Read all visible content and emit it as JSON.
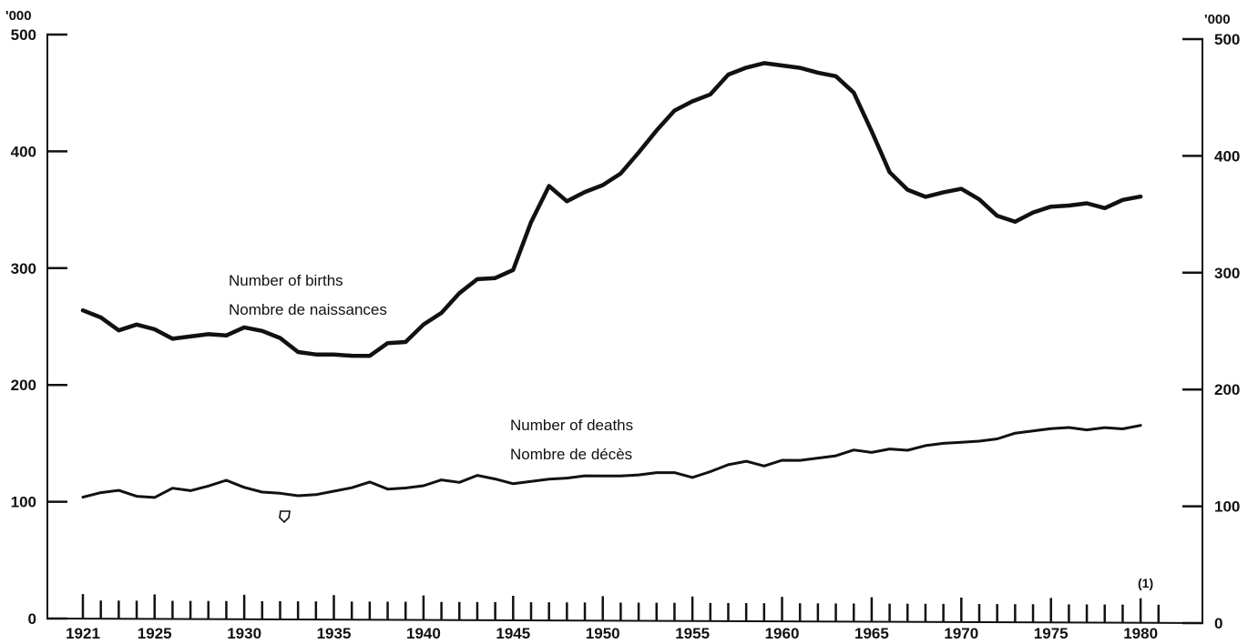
{
  "chart_data": {
    "type": "line",
    "ylabel_left": "'000",
    "ylabel_right": "'000",
    "ylim": [
      0,
      500
    ],
    "y_ticks_left": [
      "0",
      "100",
      "200",
      "300",
      "400",
      "500"
    ],
    "y_ticks_right": [
      "0",
      "100",
      "200",
      "300",
      "400",
      "500"
    ],
    "x_tick_labels": [
      "1921",
      "1925",
      "1930",
      "1935",
      "1940",
      "1945",
      "1950",
      "1955",
      "1960",
      "1965",
      "1970",
      "1975",
      "1980"
    ],
    "footnote_marker": "(1)",
    "x": [
      1921,
      1922,
      1923,
      1924,
      1925,
      1926,
      1927,
      1928,
      1929,
      1930,
      1931,
      1932,
      1933,
      1934,
      1935,
      1936,
      1937,
      1938,
      1939,
      1940,
      1941,
      1942,
      1943,
      1944,
      1945,
      1946,
      1947,
      1948,
      1949,
      1950,
      1951,
      1952,
      1953,
      1954,
      1955,
      1956,
      1957,
      1958,
      1959,
      1960,
      1961,
      1962,
      1963,
      1964,
      1965,
      1966,
      1967,
      1968,
      1969,
      1970,
      1971,
      1972,
      1973,
      1974,
      1975,
      1976,
      1977,
      1978,
      1979,
      1980
    ],
    "series": [
      {
        "name": "Number of births",
        "name_fr": "Nombre de naissances",
        "color": "#111111",
        "values": [
          264,
          258,
          247,
          252,
          248,
          240,
          242,
          244,
          243,
          250,
          247,
          241,
          229,
          227,
          227,
          226,
          226,
          237,
          238,
          253,
          263,
          280,
          292,
          293,
          300,
          341,
          372,
          359,
          367,
          373,
          383,
          401,
          420,
          437,
          445,
          451,
          468,
          474,
          478,
          476,
          474,
          470,
          467,
          453,
          420,
          385,
          370,
          364,
          368,
          371,
          362,
          348,
          343,
          351,
          356,
          357,
          359,
          355,
          362,
          365
        ],
        "line_width": 4.5
      },
      {
        "name": "Number of deaths",
        "name_fr": "Nombre de décès",
        "color": "#111111",
        "values": [
          104,
          108,
          110,
          105,
          104,
          112,
          110,
          114,
          119,
          113,
          109,
          108,
          106,
          107,
          110,
          113,
          118,
          112,
          113,
          115,
          120,
          118,
          124,
          121,
          117,
          119,
          121,
          122,
          124,
          124,
          124,
          125,
          127,
          127,
          123,
          128,
          134,
          137,
          133,
          138,
          138,
          140,
          142,
          147,
          145,
          148,
          147,
          151,
          153,
          154,
          155,
          157,
          162,
          164,
          166,
          167,
          165,
          167,
          166,
          169
        ],
        "line_width": 3
      }
    ]
  }
}
